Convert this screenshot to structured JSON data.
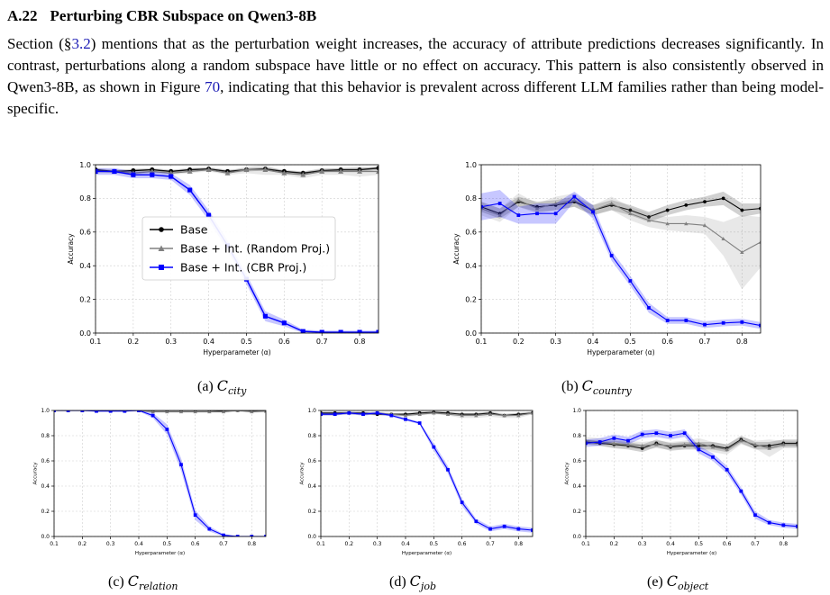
{
  "section": {
    "number": "A.22",
    "title": "Perturbing CBR Subspace on Qwen3-8B"
  },
  "paragraph": {
    "part1": "Section (§",
    "ref1": "3.2",
    "part2": ") mentions that as the perturbation weight increases, the accuracy of attribute predictions decreases significantly. In contrast, perturbations along a random subspace have little or no effect on accuracy. This pattern is also consistently observed in Qwen3-8B, as shown in Figure ",
    "ref2": "70",
    "part3": ", indicating that this behavior is prevalent across different LLM families rather than being model-specific."
  },
  "colors": {
    "base": "#000000",
    "random": "#808080",
    "cbr": "#0000ff",
    "link": "#1a1ab4"
  },
  "legend": {
    "base": "Base",
    "random": "Base + Int. (Random Proj.)",
    "cbr": "Base + Int. (CBR Proj.)"
  },
  "chart_data": [
    {
      "id": "a",
      "type": "line",
      "caption_prefix": "(a)",
      "caption_var": "C",
      "caption_sub": "city",
      "xlabel": "Hyperparameter (α)",
      "ylabel": "Accuracy",
      "xlim": [
        0.1,
        0.85
      ],
      "ylim": [
        0,
        1.0
      ],
      "xticks": [
        "0.1",
        "0.2",
        "0.3",
        "0.4",
        "0.5",
        "0.6",
        "0.7",
        "0.8"
      ],
      "yticks": [
        "0.0",
        "0.2",
        "0.4",
        "0.6",
        "0.8",
        "1.0"
      ],
      "grid": true,
      "legend_position": "center-left",
      "x": [
        0.1,
        0.15,
        0.2,
        0.25,
        0.3,
        0.35,
        0.4,
        0.45,
        0.5,
        0.55,
        0.6,
        0.65,
        0.7,
        0.75,
        0.8,
        0.85
      ],
      "series": [
        {
          "name": "Base",
          "values": [
            0.97,
            0.96,
            0.965,
            0.97,
            0.96,
            0.97,
            0.975,
            0.96,
            0.97,
            0.975,
            0.96,
            0.95,
            0.965,
            0.97,
            0.97,
            0.98
          ],
          "band": [
            0.01,
            0.01,
            0.01,
            0.01,
            0.01,
            0.01,
            0.01,
            0.01,
            0.01,
            0.01,
            0.01,
            0.01,
            0.01,
            0.01,
            0.01,
            0.01
          ]
        },
        {
          "name": "Base + Int. (Random Proj.)",
          "values": [
            0.96,
            0.96,
            0.95,
            0.96,
            0.95,
            0.96,
            0.97,
            0.95,
            0.97,
            0.97,
            0.95,
            0.94,
            0.96,
            0.96,
            0.96,
            0.96
          ],
          "band": [
            0.01,
            0.01,
            0.01,
            0.01,
            0.01,
            0.01,
            0.01,
            0.01,
            0.02,
            0.03,
            0.01,
            0.02,
            0.02,
            0.02,
            0.03,
            0.02
          ]
        },
        {
          "name": "Base + Int. (CBR Proj.)",
          "values": [
            0.96,
            0.96,
            0.94,
            0.94,
            0.93,
            0.85,
            0.7,
            0.52,
            0.32,
            0.1,
            0.06,
            0.01,
            0.005,
            0.005,
            0.005,
            0.005
          ],
          "band": [
            0.02,
            0.02,
            0.02,
            0.02,
            0.02,
            0.03,
            0.03,
            0.03,
            0.03,
            0.03,
            0.02,
            0.01,
            0.01,
            0.01,
            0.01,
            0.01
          ]
        }
      ]
    },
    {
      "id": "b",
      "type": "line",
      "caption_prefix": "(b)",
      "caption_var": "C",
      "caption_sub": "country",
      "xlabel": "Hyperparameter (α)",
      "ylabel": "Accuracy",
      "xlim": [
        0.1,
        0.85
      ],
      "ylim": [
        0,
        1.0
      ],
      "xticks": [
        "0.1",
        "0.2",
        "0.3",
        "0.4",
        "0.5",
        "0.6",
        "0.7",
        "0.8"
      ],
      "yticks": [
        "0.0",
        "0.2",
        "0.4",
        "0.6",
        "0.8",
        "1.0"
      ],
      "grid": true,
      "x": [
        0.1,
        0.15,
        0.2,
        0.25,
        0.3,
        0.35,
        0.4,
        0.45,
        0.5,
        0.55,
        0.6,
        0.65,
        0.7,
        0.75,
        0.8,
        0.85
      ],
      "series": [
        {
          "name": "Base",
          "values": [
            0.75,
            0.71,
            0.78,
            0.75,
            0.76,
            0.78,
            0.73,
            0.76,
            0.73,
            0.69,
            0.73,
            0.76,
            0.78,
            0.8,
            0.73,
            0.74
          ],
          "band": [
            0.03,
            0.03,
            0.03,
            0.03,
            0.03,
            0.03,
            0.03,
            0.03,
            0.03,
            0.03,
            0.03,
            0.03,
            0.03,
            0.04,
            0.04,
            0.03
          ]
        },
        {
          "name": "Base + Int. (Random Proj.)",
          "values": [
            0.74,
            0.7,
            0.79,
            0.74,
            0.77,
            0.79,
            0.73,
            0.77,
            0.71,
            0.67,
            0.65,
            0.65,
            0.64,
            0.56,
            0.48,
            0.54
          ],
          "band": [
            0.04,
            0.04,
            0.04,
            0.03,
            0.04,
            0.04,
            0.03,
            0.04,
            0.04,
            0.04,
            0.04,
            0.05,
            0.05,
            0.1,
            0.22,
            0.15
          ]
        },
        {
          "name": "Base + Int. (CBR Proj.)",
          "values": [
            0.75,
            0.77,
            0.7,
            0.71,
            0.71,
            0.81,
            0.72,
            0.46,
            0.31,
            0.15,
            0.075,
            0.075,
            0.05,
            0.06,
            0.065,
            0.045
          ],
          "band": [
            0.08,
            0.08,
            0.05,
            0.06,
            0.06,
            0.03,
            0.04,
            0.03,
            0.03,
            0.03,
            0.02,
            0.02,
            0.02,
            0.02,
            0.02,
            0.02
          ]
        }
      ]
    },
    {
      "id": "c",
      "type": "line",
      "caption_prefix": "(c)",
      "caption_var": "C",
      "caption_sub": "relation",
      "xlabel": "Hyperparameter (α)",
      "ylabel": "Accuracy",
      "xlim": [
        0.1,
        0.85
      ],
      "ylim": [
        0,
        1.0
      ],
      "xticks": [
        "0.1",
        "0.2",
        "0.3",
        "0.4",
        "0.5",
        "0.6",
        "0.7",
        "0.8"
      ],
      "yticks": [
        "0.0",
        "0.2",
        "0.4",
        "0.6",
        "0.8",
        "1.0"
      ],
      "grid": true,
      "x": [
        0.1,
        0.15,
        0.2,
        0.25,
        0.3,
        0.35,
        0.4,
        0.45,
        0.5,
        0.55,
        0.6,
        0.65,
        0.7,
        0.75,
        0.8,
        0.85
      ],
      "series": [
        {
          "name": "Base",
          "values": [
            1.0,
            1.0,
            1.0,
            1.0,
            1.0,
            1.0,
            1.0,
            1.0,
            1.0,
            1.0,
            1.0,
            1.0,
            0.995,
            1.0,
            0.995,
            1.0
          ],
          "band": [
            0.005,
            0.005,
            0.005,
            0.005,
            0.005,
            0.005,
            0.005,
            0.005,
            0.005,
            0.005,
            0.005,
            0.005,
            0.005,
            0.005,
            0.005,
            0.005
          ]
        },
        {
          "name": "Base + Int. (Random Proj.)",
          "values": [
            1.0,
            1.0,
            1.0,
            1.0,
            1.0,
            1.0,
            1.0,
            0.99,
            0.99,
            0.99,
            0.99,
            0.99,
            0.99,
            1.0,
            0.99,
            0.995
          ],
          "band": [
            0.005,
            0.005,
            0.005,
            0.005,
            0.005,
            0.005,
            0.005,
            0.01,
            0.01,
            0.01,
            0.01,
            0.01,
            0.01,
            0.01,
            0.01,
            0.01
          ]
        },
        {
          "name": "Base + Int. (CBR Proj.)",
          "values": [
            1.0,
            1.0,
            1.0,
            0.995,
            0.995,
            0.995,
            1.0,
            0.96,
            0.85,
            0.57,
            0.17,
            0.06,
            0.01,
            0.0,
            0.0,
            0.0
          ],
          "band": [
            0.005,
            0.005,
            0.005,
            0.005,
            0.005,
            0.005,
            0.005,
            0.02,
            0.04,
            0.05,
            0.04,
            0.02,
            0.01,
            0.005,
            0.005,
            0.005
          ]
        }
      ]
    },
    {
      "id": "d",
      "type": "line",
      "caption_prefix": "(d)",
      "caption_var": "C",
      "caption_sub": "job",
      "xlabel": "Hyperparameter (α)",
      "ylabel": "Accuracy",
      "xlim": [
        0.1,
        0.85
      ],
      "ylim": [
        0,
        1.0
      ],
      "xticks": [
        "0.1",
        "0.2",
        "0.3",
        "0.4",
        "0.5",
        "0.6",
        "0.7",
        "0.8"
      ],
      "yticks": [
        "0.0",
        "0.2",
        "0.4",
        "0.6",
        "0.8",
        "1.0"
      ],
      "grid": true,
      "x": [
        0.1,
        0.15,
        0.2,
        0.25,
        0.3,
        0.35,
        0.4,
        0.45,
        0.5,
        0.55,
        0.6,
        0.65,
        0.7,
        0.75,
        0.8,
        0.85
      ],
      "series": [
        {
          "name": "Base",
          "values": [
            0.98,
            0.98,
            0.98,
            0.98,
            0.97,
            0.97,
            0.97,
            0.98,
            0.985,
            0.98,
            0.97,
            0.97,
            0.98,
            0.96,
            0.97,
            0.98
          ],
          "band": [
            0.01,
            0.01,
            0.01,
            0.01,
            0.01,
            0.01,
            0.01,
            0.01,
            0.01,
            0.01,
            0.01,
            0.01,
            0.01,
            0.01,
            0.01,
            0.01
          ]
        },
        {
          "name": "Base + Int. (Random Proj.)",
          "values": [
            0.97,
            0.97,
            0.98,
            0.97,
            0.98,
            0.97,
            0.96,
            0.97,
            0.98,
            0.97,
            0.96,
            0.96,
            0.97,
            0.96,
            0.96,
            0.98
          ],
          "band": [
            0.01,
            0.01,
            0.01,
            0.01,
            0.01,
            0.01,
            0.01,
            0.01,
            0.01,
            0.01,
            0.02,
            0.02,
            0.02,
            0.02,
            0.02,
            0.01
          ]
        },
        {
          "name": "Base + Int. (CBR Proj.)",
          "values": [
            0.97,
            0.97,
            0.98,
            0.97,
            0.98,
            0.96,
            0.93,
            0.9,
            0.71,
            0.53,
            0.27,
            0.12,
            0.06,
            0.08,
            0.06,
            0.05
          ],
          "band": [
            0.01,
            0.01,
            0.01,
            0.01,
            0.01,
            0.01,
            0.01,
            0.01,
            0.03,
            0.03,
            0.03,
            0.02,
            0.02,
            0.02,
            0.02,
            0.02
          ]
        }
      ]
    },
    {
      "id": "e",
      "type": "line",
      "caption_prefix": "(e)",
      "caption_var": "C",
      "caption_sub": "object",
      "xlabel": "Hyperparameter (α)",
      "ylabel": "Accuracy",
      "xlim": [
        0.1,
        0.85
      ],
      "ylim": [
        0,
        1.0
      ],
      "xticks": [
        "0.1",
        "0.2",
        "0.3",
        "0.4",
        "0.5",
        "0.6",
        "0.7",
        "0.8"
      ],
      "yticks": [
        "0.0",
        "0.2",
        "0.4",
        "0.6",
        "0.8",
        "1.0"
      ],
      "grid": true,
      "x": [
        0.1,
        0.15,
        0.2,
        0.25,
        0.3,
        0.35,
        0.4,
        0.45,
        0.5,
        0.55,
        0.6,
        0.65,
        0.7,
        0.75,
        0.8,
        0.85
      ],
      "series": [
        {
          "name": "Base",
          "values": [
            0.75,
            0.74,
            0.73,
            0.72,
            0.7,
            0.74,
            0.71,
            0.72,
            0.72,
            0.72,
            0.7,
            0.77,
            0.72,
            0.72,
            0.74,
            0.74
          ],
          "band": [
            0.02,
            0.02,
            0.03,
            0.03,
            0.03,
            0.03,
            0.03,
            0.03,
            0.03,
            0.03,
            0.03,
            0.03,
            0.03,
            0.03,
            0.03,
            0.03
          ]
        },
        {
          "name": "Base + Int. (Random Proj.)",
          "values": [
            0.76,
            0.75,
            0.74,
            0.73,
            0.72,
            0.73,
            0.72,
            0.73,
            0.74,
            0.71,
            0.69,
            0.76,
            0.73,
            0.7,
            0.73,
            0.73
          ],
          "band": [
            0.03,
            0.03,
            0.03,
            0.03,
            0.03,
            0.03,
            0.03,
            0.03,
            0.04,
            0.04,
            0.04,
            0.03,
            0.03,
            0.07,
            0.03,
            0.03
          ]
        },
        {
          "name": "Base + Int. (CBR Proj.)",
          "values": [
            0.74,
            0.75,
            0.78,
            0.76,
            0.81,
            0.82,
            0.8,
            0.82,
            0.69,
            0.63,
            0.53,
            0.36,
            0.17,
            0.11,
            0.09,
            0.08
          ],
          "band": [
            0.03,
            0.03,
            0.03,
            0.03,
            0.03,
            0.03,
            0.03,
            0.03,
            0.03,
            0.03,
            0.03,
            0.03,
            0.03,
            0.02,
            0.02,
            0.02
          ]
        }
      ]
    }
  ]
}
